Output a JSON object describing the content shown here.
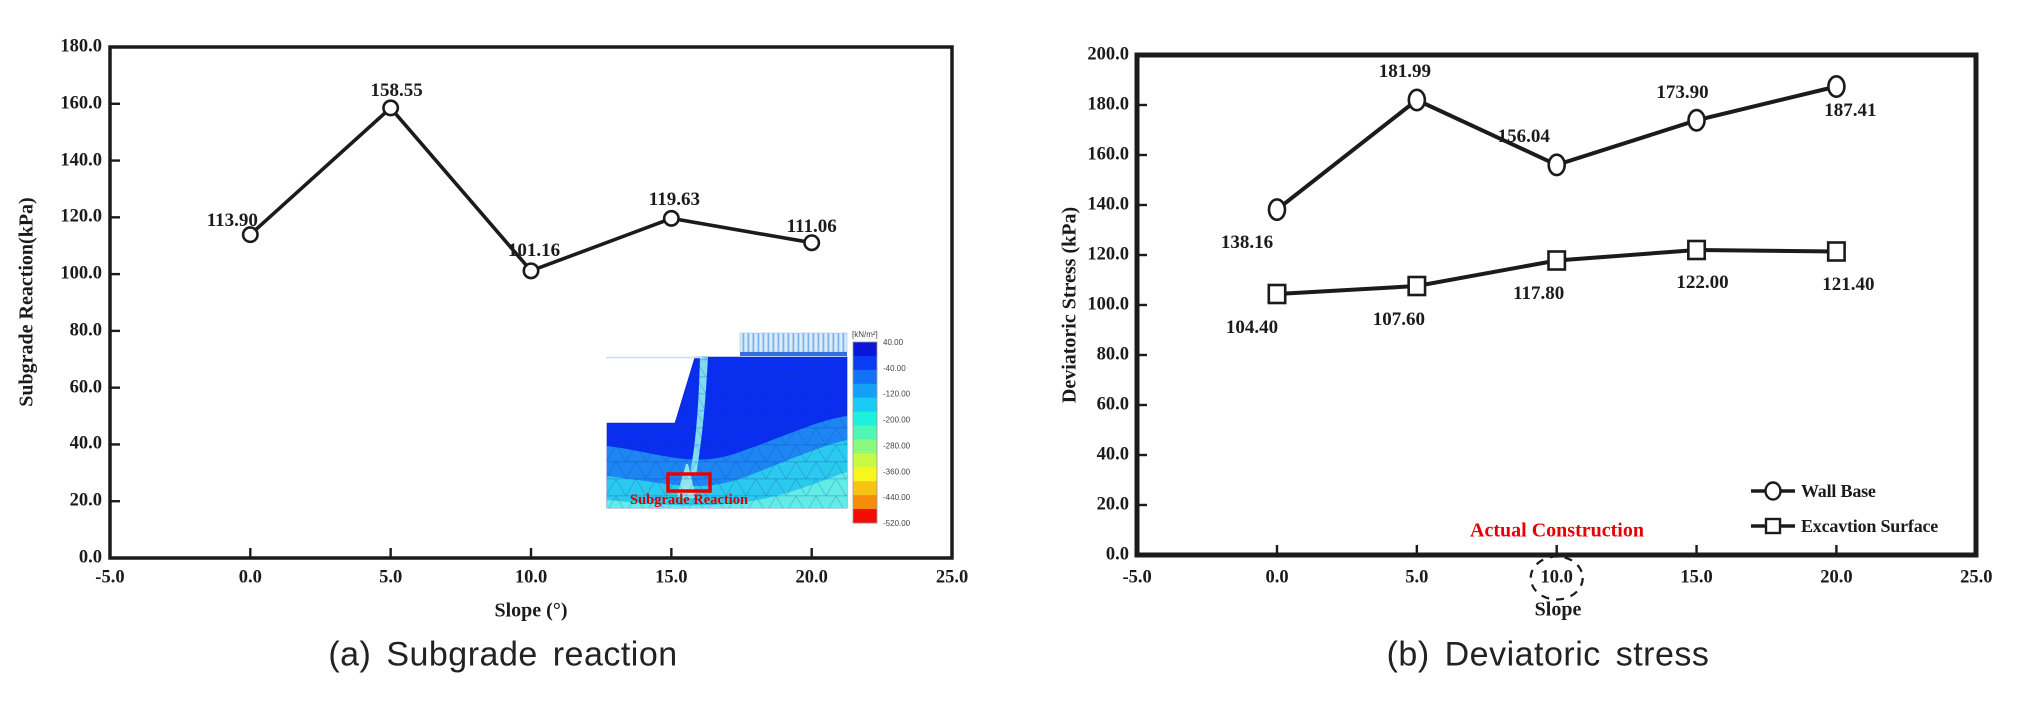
{
  "page": {
    "captions": [
      "(a) Subgrade reaction",
      "(b) Deviatoric stress"
    ]
  },
  "chart_data": [
    {
      "type": "line",
      "title": "",
      "xlabel": "Slope (°)",
      "ylabel": "Subgrade Reaction(kPa)",
      "x": [
        0,
        5,
        10,
        15,
        20
      ],
      "xlim": [
        -5,
        25
      ],
      "ylim": [
        0,
        180
      ],
      "grid": "off",
      "x_ticks": [
        "-5.0",
        "0.0",
        "5.0",
        "10.0",
        "15.0",
        "20.0",
        "25.0"
      ],
      "y_ticks": [
        "0.0",
        "20.0",
        "40.0",
        "60.0",
        "80.0",
        "100.0",
        "120.0",
        "140.0",
        "160.0",
        "180.0"
      ],
      "series": [
        {
          "name": "Subgrade Reaction",
          "marker": "circle",
          "color": "#1b1b1b",
          "values": [
            113.9,
            158.55,
            101.16,
            119.63,
            111.06
          ],
          "labels": [
            "113.90",
            "158.55",
            "101.16",
            "119.63",
            "111.06"
          ]
        }
      ]
    },
    {
      "type": "line",
      "title": "",
      "xlabel": "Slope",
      "ylabel": "Deviatoric Stress (kPa)",
      "x": [
        0,
        5,
        10,
        15,
        20
      ],
      "xlim": [
        -5,
        25
      ],
      "ylim": [
        0,
        200
      ],
      "grid": "off",
      "legend_position": "lower right",
      "x_ticks": [
        "-5.0",
        "0.0",
        "5.0",
        "10.0",
        "15.0",
        "20.0",
        "25.0"
      ],
      "y_ticks": [
        "0.0",
        "20.0",
        "40.0",
        "60.0",
        "80.0",
        "100.0",
        "120.0",
        "140.0",
        "160.0",
        "180.0",
        "200.0"
      ],
      "series": [
        {
          "name": "Wall Base",
          "marker": "circle",
          "color": "#1b1b1b",
          "values": [
            138.16,
            181.99,
            156.04,
            173.9,
            187.41
          ],
          "labels": [
            "138.16",
            "181.99",
            "156.04",
            "173.90",
            "187.41"
          ]
        },
        {
          "name": "Excavtion Surface",
          "marker": "square",
          "color": "#1b1b1b",
          "values": [
            104.4,
            107.6,
            117.8,
            122.0,
            121.4
          ],
          "labels": [
            "104.40",
            "107.60",
            "117.80",
            "122.00",
            "121.40"
          ]
        }
      ],
      "annotation": {
        "text": "Actual Construction",
        "color": "#e80000",
        "circled_tick": "10.0"
      }
    }
  ],
  "inset": {
    "annotation": "Subgrade Reaction",
    "annotation_color": "#d60000",
    "unit_label": "[kN/m²]",
    "colorbar_values": [
      "40.00",
      "-40.00",
      "-120.00",
      "-200.00",
      "-280.00",
      "-360.00",
      "-440.00",
      "-520.00"
    ],
    "colorbar_colors": [
      "#0b16d8",
      "#0b3cf5",
      "#1172f7",
      "#15a0f7",
      "#19ccf5",
      "#1ef0de",
      "#50f7b4",
      "#8af97e",
      "#c8fa45",
      "#f7f71e",
      "#f7c413",
      "#f78c0b",
      "#f50a05"
    ]
  }
}
